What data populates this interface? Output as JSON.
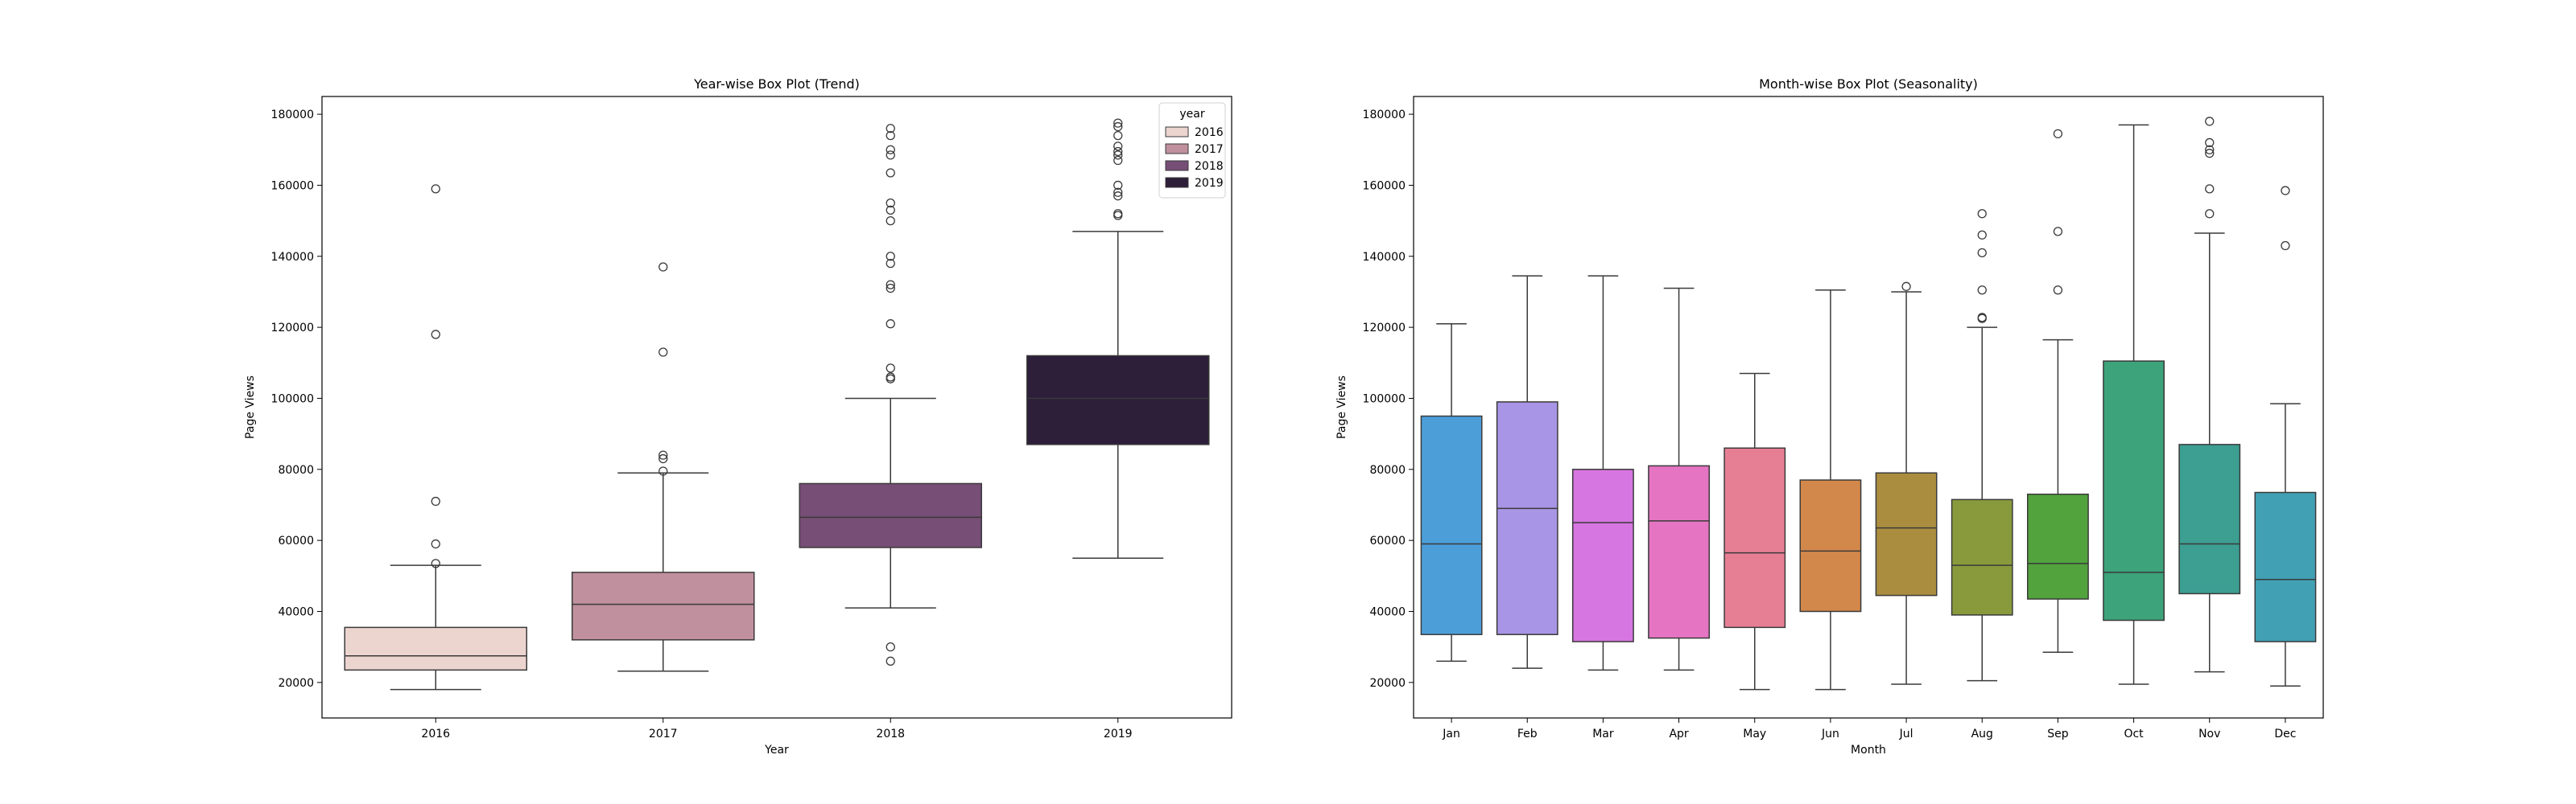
{
  "chart_data": [
    {
      "type": "box",
      "title": "Year-wise Box Plot (Trend)",
      "xlabel": "Year",
      "ylabel": "Page Views",
      "ylim": [
        10000,
        185000
      ],
      "yticks": [
        20000,
        40000,
        60000,
        80000,
        100000,
        120000,
        140000,
        160000,
        180000
      ],
      "grid": false,
      "legend": {
        "title": "year",
        "position": "top-right",
        "entries": [
          "2016",
          "2017",
          "2018",
          "2019"
        ]
      },
      "categories": [
        "2016",
        "2017",
        "2018",
        "2019"
      ],
      "boxes": [
        {
          "category": "2016",
          "color": "#ecd4cf",
          "whisker_low": 18000,
          "q1": 23500,
          "median": 27500,
          "q3": 35500,
          "whisker_high": 53000,
          "outliers": [
            53500,
            59000,
            71000,
            118000,
            159000
          ]
        },
        {
          "category": "2017",
          "color": "#c0909e",
          "whisker_low": 23200,
          "q1": 32000,
          "median": 42000,
          "q3": 51000,
          "whisker_high": 79000,
          "outliers": [
            79500,
            83000,
            84000,
            113000,
            137000
          ]
        },
        {
          "category": "2018",
          "color": "#774e76",
          "whisker_low": 41000,
          "q1": 58000,
          "median": 66500,
          "q3": 76000,
          "whisker_high": 100000,
          "outliers": [
            26000,
            30000,
            105500,
            106000,
            108500,
            121000,
            131000,
            132000,
            138000,
            140000,
            150000,
            153000,
            155000,
            163500,
            168500,
            170000,
            174000,
            176000
          ]
        },
        {
          "category": "2019",
          "color": "#2d1e3a",
          "whisker_low": 55000,
          "q1": 87000,
          "median": 100000,
          "q3": 112000,
          "whisker_high": 147000,
          "outliers": [
            151500,
            152000,
            157000,
            158000,
            160000,
            167000,
            168500,
            169500,
            171000,
            174000,
            176500,
            177500
          ]
        }
      ]
    },
    {
      "type": "box",
      "title": "Month-wise Box Plot (Seasonality)",
      "xlabel": "Month",
      "ylabel": "Page Views",
      "ylim": [
        10000,
        185000
      ],
      "yticks": [
        20000,
        40000,
        60000,
        80000,
        100000,
        120000,
        140000,
        160000,
        180000
      ],
      "grid": false,
      "categories": [
        "Jan",
        "Feb",
        "Mar",
        "Apr",
        "May",
        "Jun",
        "Jul",
        "Aug",
        "Sep",
        "Oct",
        "Nov",
        "Dec"
      ],
      "boxes": [
        {
          "category": "Jan",
          "color": "#4c9ed9",
          "whisker_low": 26000,
          "q1": 33500,
          "median": 59000,
          "q3": 95000,
          "whisker_high": 121000,
          "outliers": []
        },
        {
          "category": "Feb",
          "color": "#a995e6",
          "whisker_low": 24000,
          "q1": 33500,
          "median": 69000,
          "q3": 99000,
          "whisker_high": 134500,
          "outliers": []
        },
        {
          "category": "Mar",
          "color": "#d676e0",
          "whisker_low": 23500,
          "q1": 31500,
          "median": 65000,
          "q3": 80000,
          "whisker_high": 134500,
          "outliers": []
        },
        {
          "category": "Apr",
          "color": "#e575c3",
          "whisker_low": 23500,
          "q1": 32500,
          "median": 65500,
          "q3": 81000,
          "whisker_high": 131000,
          "outliers": []
        },
        {
          "category": "May",
          "color": "#e77f94",
          "whisker_low": 18000,
          "q1": 35500,
          "median": 56500,
          "q3": 86000,
          "whisker_high": 107000,
          "outliers": []
        },
        {
          "category": "Jun",
          "color": "#d3884b",
          "whisker_low": 18000,
          "q1": 40000,
          "median": 57000,
          "q3": 77000,
          "whisker_high": 130500,
          "outliers": []
        },
        {
          "category": "Jul",
          "color": "#ab8d3f",
          "whisker_low": 19500,
          "q1": 44500,
          "median": 63500,
          "q3": 79000,
          "whisker_high": 130000,
          "outliers": [
            131500
          ]
        },
        {
          "category": "Aug",
          "color": "#889a3c",
          "whisker_low": 20500,
          "q1": 39000,
          "median": 53000,
          "q3": 71500,
          "whisker_high": 120000,
          "outliers": [
            122500,
            122800,
            130500,
            141000,
            146000,
            152000
          ]
        },
        {
          "category": "Sep",
          "color": "#52a33d",
          "whisker_low": 28500,
          "q1": 43500,
          "median": 53500,
          "q3": 73000,
          "whisker_high": 116500,
          "outliers": [
            130500,
            147000,
            174500
          ]
        },
        {
          "category": "Oct",
          "color": "#3da37a",
          "whisker_low": 19500,
          "q1": 37500,
          "median": 51000,
          "q3": 110500,
          "whisker_high": 177000,
          "outliers": []
        },
        {
          "category": "Nov",
          "color": "#3d9e92",
          "whisker_low": 23000,
          "q1": 45000,
          "median": 59000,
          "q3": 87000,
          "whisker_high": 146500,
          "outliers": [
            152000,
            159000,
            169000,
            170000,
            172000,
            178000
          ]
        },
        {
          "category": "Dec",
          "color": "#41a0b3",
          "whisker_low": 19000,
          "q1": 31500,
          "median": 49000,
          "q3": 73500,
          "whisker_high": 98500,
          "outliers": [
            143000,
            158500
          ]
        }
      ]
    }
  ]
}
